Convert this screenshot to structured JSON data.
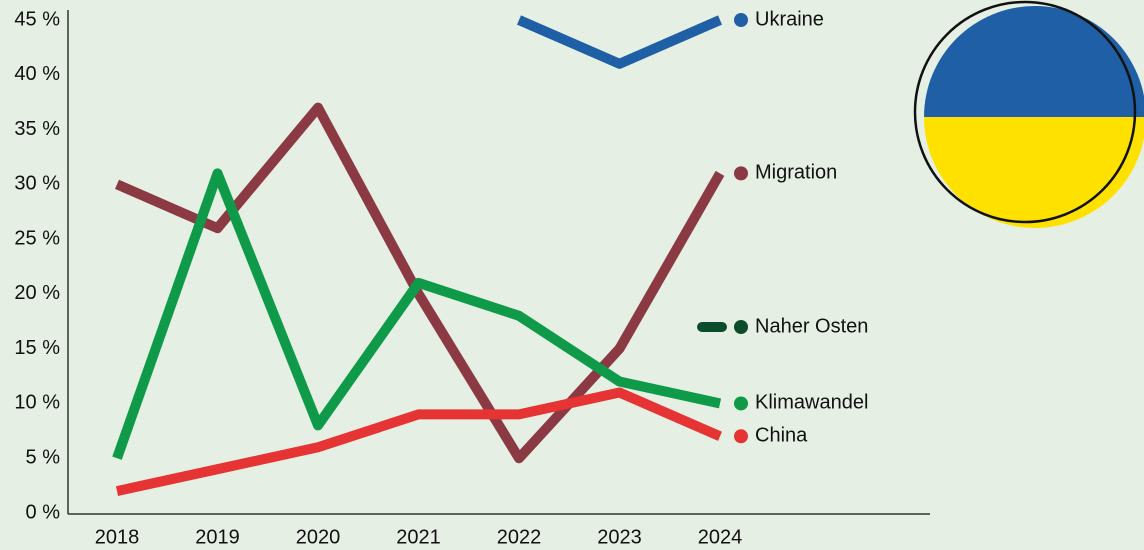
{
  "chart_data": {
    "type": "line",
    "categories": [
      "2018",
      "2019",
      "2020",
      "2021",
      "2022",
      "2023",
      "2024"
    ],
    "series": [
      {
        "name": "Ukraine",
        "color": "#1f5fa6",
        "values": [
          null,
          null,
          null,
          null,
          45,
          41,
          45
        ]
      },
      {
        "name": "Migration",
        "color": "#8b3a43",
        "values": [
          30,
          26,
          37,
          20,
          5,
          15,
          31
        ]
      },
      {
        "name": "Naher Osten",
        "color": "#0b4d2a",
        "values": [
          null,
          null,
          null,
          null,
          null,
          null,
          null
        ]
      },
      {
        "name": "Klimawandel",
        "color": "#0e9a48",
        "values": [
          5,
          31,
          8,
          21,
          18,
          12,
          10
        ]
      },
      {
        "name": "China",
        "color": "#e63333",
        "values": [
          2,
          4,
          6,
          9,
          9,
          11,
          7
        ]
      }
    ],
    "ylim": [
      0,
      45
    ],
    "yticks": [
      {
        "value": 0,
        "label": "0 %"
      },
      {
        "value": 5,
        "label": "5 %"
      },
      {
        "value": 10,
        "label": "10 %"
      },
      {
        "value": 15,
        "label": "15 %"
      },
      {
        "value": 20,
        "label": "20 %"
      },
      {
        "value": 25,
        "label": "25 %"
      },
      {
        "value": 30,
        "label": "30 %"
      },
      {
        "value": 35,
        "label": "35 %"
      },
      {
        "value": 40,
        "label": "40 %"
      },
      {
        "value": 45,
        "label": "45 %"
      }
    ],
    "grid": false
  }
}
